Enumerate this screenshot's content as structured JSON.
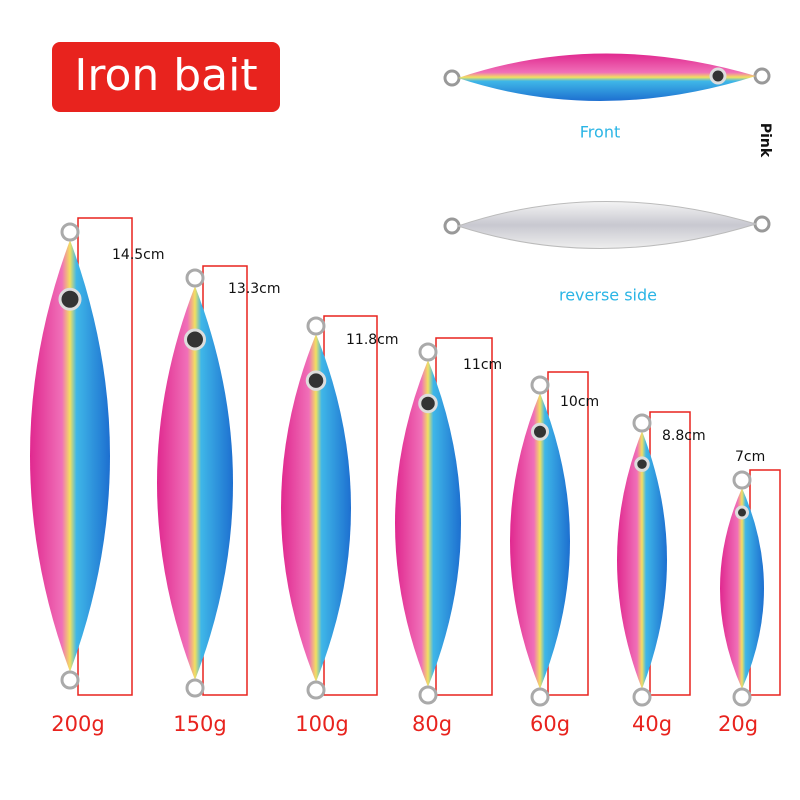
{
  "title": "Iron bait",
  "front": {
    "label": "Front",
    "color_name": "Pink"
  },
  "reverse": {
    "label": "reverse side"
  },
  "lures": [
    {
      "length": "14.5cm",
      "weight": "200g"
    },
    {
      "length": "13.3cm",
      "weight": "150g"
    },
    {
      "length": "11.8cm",
      "weight": "100g"
    },
    {
      "length": "11cm",
      "weight": "80g"
    },
    {
      "length": "10cm",
      "weight": "60g"
    },
    {
      "length": "8.8cm",
      "weight": "40g"
    },
    {
      "length": "7cm",
      "weight": "20g"
    }
  ]
}
